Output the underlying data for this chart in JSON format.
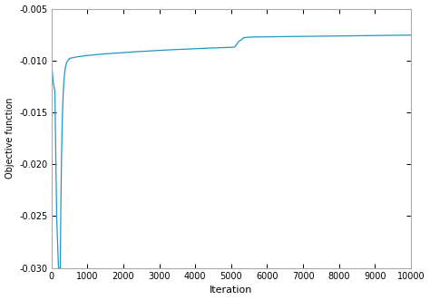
{
  "title": "",
  "xlabel": "Iteration",
  "ylabel": "Objective function",
  "xlim": [
    0,
    10000
  ],
  "ylim": [
    -0.03,
    -0.005
  ],
  "xticks": [
    0,
    1000,
    2000,
    3000,
    4000,
    5000,
    6000,
    7000,
    8000,
    9000,
    10000
  ],
  "yticks": [
    -0.03,
    -0.025,
    -0.02,
    -0.015,
    -0.01,
    -0.005
  ],
  "line_color": "#2196c8",
  "line_width": 0.9,
  "fig_bg": "#ffffff",
  "ax_bg": "#ffffff",
  "spine_color": "#aaaaaa",
  "tick_label_size": 7,
  "xlabel_size": 8,
  "ylabel_size": 7
}
